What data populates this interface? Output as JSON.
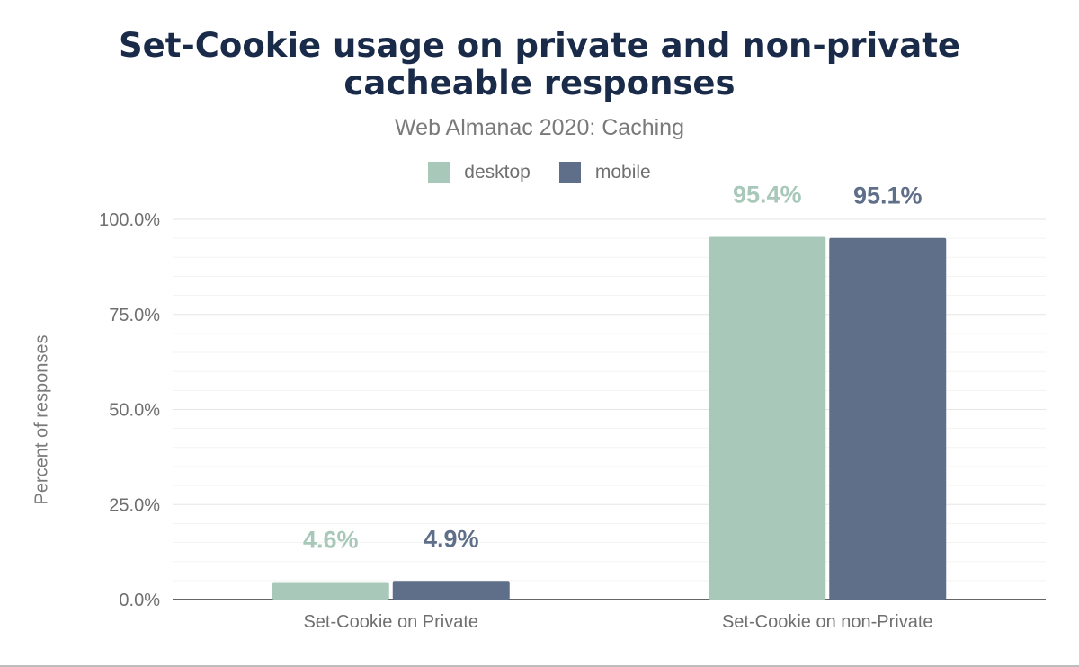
{
  "title_line1": "Set-Cookie usage on private and non-private",
  "title_line2": "cacheable responses",
  "subtitle": "Web Almanac 2020: Caching",
  "chart_data": {
    "type": "bar",
    "title": "Set-Cookie usage on private and non-private cacheable responses",
    "subtitle": "Web Almanac 2020: Caching",
    "xlabel": "",
    "ylabel": "Percent of responses",
    "ylim": [
      0,
      100
    ],
    "yticks": [
      "0.0%",
      "25.0%",
      "50.0%",
      "75.0%",
      "100.0%"
    ],
    "ytick_values": [
      0,
      25,
      50,
      75,
      100
    ],
    "grid": true,
    "legend_position": "top-center",
    "categories": [
      "Set-Cookie on Private",
      "Set-Cookie on non-Private"
    ],
    "series": [
      {
        "name": "desktop",
        "color": "#a8c8b9",
        "values": [
          4.6,
          95.4
        ],
        "labels": [
          "4.6%",
          "95.4%"
        ]
      },
      {
        "name": "mobile",
        "color": "#5f6f89",
        "values": [
          4.9,
          95.1
        ],
        "labels": [
          "4.9%",
          "95.1%"
        ]
      }
    ]
  }
}
